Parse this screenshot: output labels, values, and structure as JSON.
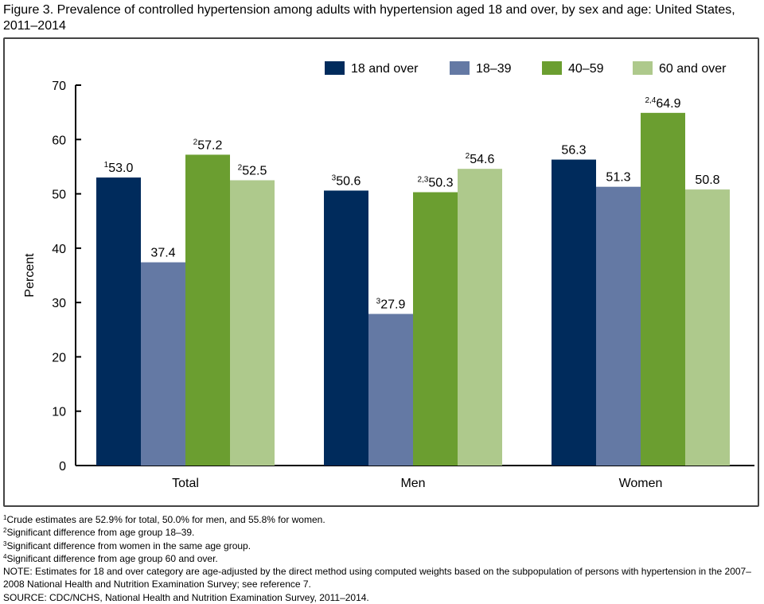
{
  "title": "Figure 3. Prevalence of controlled hypertension among adults with hypertension aged 18 and over, by sex and age: United States, 2011–2014",
  "chart_data": {
    "type": "bar",
    "ylabel": "Percent",
    "xlabel": "",
    "ylim": [
      0,
      70
    ],
    "yticks": [
      0,
      10,
      20,
      30,
      40,
      50,
      60,
      70
    ],
    "grid": false,
    "legend_position": "top-right",
    "categories": [
      "Total",
      "Men",
      "Women"
    ],
    "series": [
      {
        "name": "18 and over",
        "color": "#002b5c",
        "values": [
          53.0,
          50.6,
          56.3
        ],
        "labels": [
          "53.0",
          "50.6",
          "56.3"
        ],
        "superscripts": [
          "1",
          "3",
          ""
        ]
      },
      {
        "name": "18–39",
        "color": "#6479a4",
        "values": [
          37.4,
          27.9,
          51.3
        ],
        "labels": [
          "37.4",
          "27.9",
          "51.3"
        ],
        "superscripts": [
          "",
          "3",
          ""
        ]
      },
      {
        "name": "40–59",
        "color": "#6b9e30",
        "values": [
          57.2,
          50.3,
          64.9
        ],
        "labels": [
          "57.2",
          "50.3",
          "64.9"
        ],
        "superscripts": [
          "2",
          "2,3",
          "2,4"
        ]
      },
      {
        "name": "60 and over",
        "color": "#aec98c",
        "values": [
          52.5,
          54.6,
          50.8
        ],
        "labels": [
          "52.5",
          "54.6",
          "50.8"
        ],
        "superscripts": [
          "2",
          "2",
          ""
        ]
      }
    ]
  },
  "footnotes": [
    {
      "mark": "1",
      "text": "Crude estimates are 52.9% for total, 50.0% for men, and 55.8% for women."
    },
    {
      "mark": "2",
      "text": "Significant difference from age group 18–39."
    },
    {
      "mark": "3",
      "text": "Significant difference from women in the same age group."
    },
    {
      "mark": "4",
      "text": "Significant difference from age group 60 and over."
    }
  ],
  "note": "NOTE: Estimates for 18 and over category are age-adjusted by the direct method using computed weights based on the subpopulation of persons with hypertension in the 2007–2008 National Health and Nutrition Examination Survey; see reference 7.",
  "source": "SOURCE: CDC/NCHS, National Health and Nutrition Examination Survey, 2011–2014."
}
